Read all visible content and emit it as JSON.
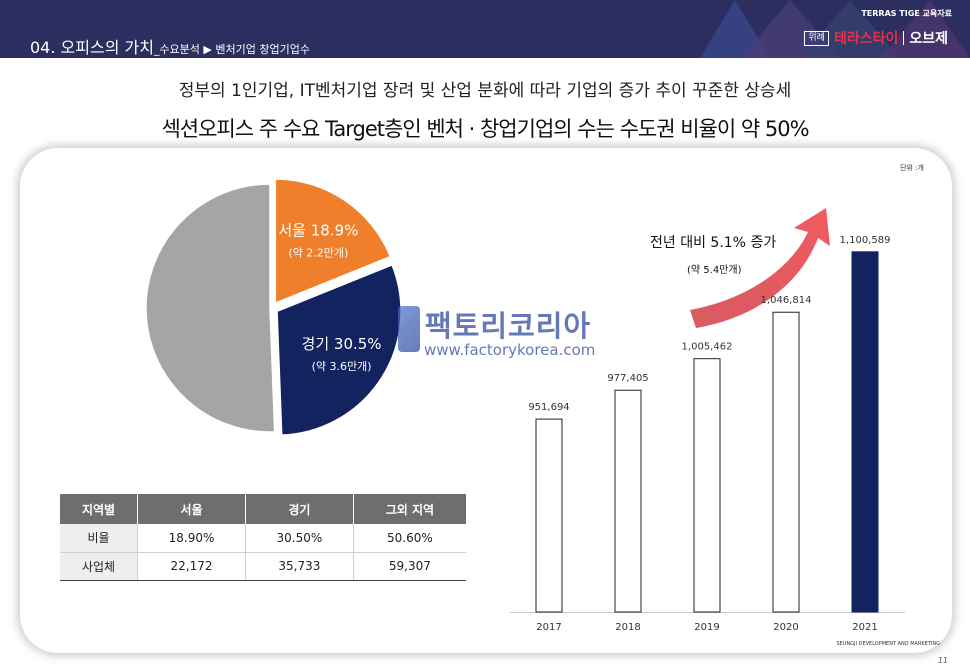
{
  "header": {
    "section_title": "04. 오피스의 가치",
    "section_sub": "_수요분석 ▶ 벤처기업 창업기업수",
    "brand_small": "TERRAS TIGE 교육자료",
    "brand_tag": "위례",
    "brand_name": "테라스타이",
    "brand_name2": "오브제",
    "colors": {
      "bar": "#2b2e5e",
      "brand": "#e2314a"
    }
  },
  "headline": {
    "line1": "정부의 1인기업, IT벤처기업 장려 및 산업 분화에 따라 기업의 증가 추이 꾸준한 상승세",
    "line2": "섹션오피스 주 수요 Target층인 벤처 · 창업기업의 수는 수도권 비율이 약 50%"
  },
  "chart_data": [
    {
      "type": "pie",
      "slices": [
        {
          "label": "서울 18.9%",
          "sublabel": "(약 2.2만개)",
          "value": 18.9,
          "color": "#ef7f2a",
          "exploded": true
        },
        {
          "label": "경기 30.5%",
          "sublabel": "(약 3.6만개)",
          "value": 30.5,
          "color": "#122360",
          "exploded": true
        },
        {
          "label": "",
          "sublabel": "",
          "value": 50.6,
          "color": "#a5a5a5",
          "exploded": false
        }
      ]
    },
    {
      "type": "bar",
      "unit": "단위 :개",
      "categories": [
        "2017",
        "2018",
        "2019",
        "2020",
        "2021"
      ],
      "values": [
        951694,
        977405,
        1005462,
        1046814,
        1100589
      ],
      "value_labels": [
        "951,694",
        "977,405",
        "1,005,462",
        "1,046,814",
        "1,100,589"
      ],
      "highlight_index": 4,
      "ylim": [
        780000,
        1120000
      ],
      "annotation": {
        "text": "전년 대비 5.1% 증가",
        "subtext": "(약 5.4만개)"
      }
    }
  ],
  "table": {
    "headers": [
      "지역별",
      "서울",
      "경기",
      "그외 지역"
    ],
    "rows": [
      [
        "비율",
        "18.90%",
        "30.50%",
        "50.60%"
      ],
      [
        "사업체",
        "22,172",
        "35,733",
        "59,307"
      ]
    ]
  },
  "watermark": {
    "name": "팩토리코리아",
    "url": "www.factorykorea.com"
  },
  "footer": {
    "company": "SEUNGJI DEVELOPMENT AND MARKETING",
    "page": "11"
  }
}
